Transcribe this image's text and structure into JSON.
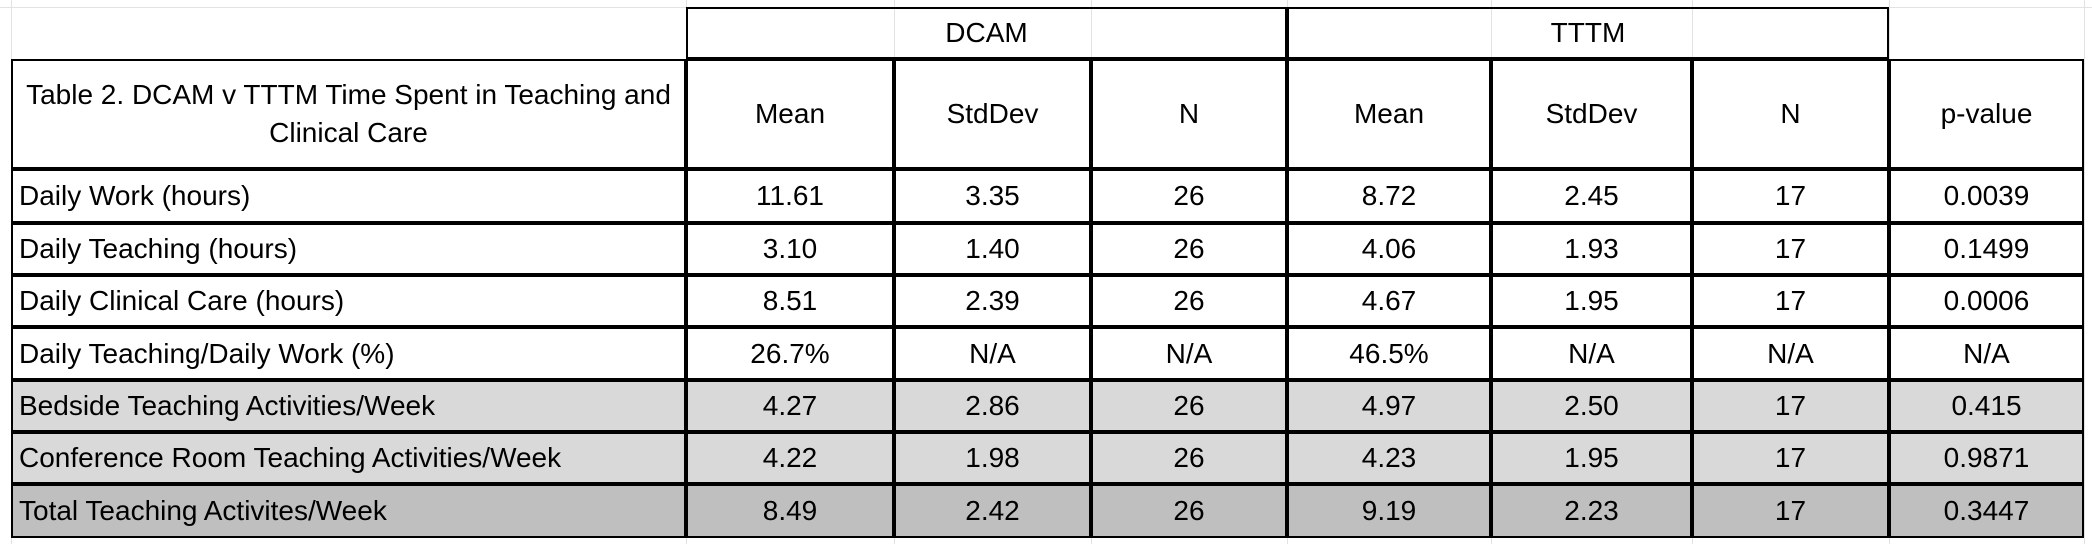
{
  "groups": [
    "DCAM",
    "TTTM"
  ],
  "header": {
    "title": "Table 2. DCAM v TTTM Time Spent in Teaching and Clinical Care",
    "columns": [
      "Mean",
      "StdDev",
      "N",
      "Mean",
      "StdDev",
      "N",
      "p-value"
    ]
  },
  "table": {
    "rows": [
      [
        "Daily Work (hours)",
        "11.61",
        "3.35",
        "26",
        "8.72",
        "2.45",
        "17",
        "0.0039"
      ],
      [
        "Daily Teaching (hours)",
        "3.10",
        "1.40",
        "26",
        "4.06",
        "1.93",
        "17",
        "0.1499"
      ],
      [
        "Daily Clinical Care (hours)",
        "8.51",
        "2.39",
        "26",
        "4.67",
        "1.95",
        "17",
        "0.0006"
      ],
      [
        "Daily Teaching/Daily Work (%)",
        "26.7%",
        "N/A",
        "N/A",
        "46.5%",
        "N/A",
        "N/A",
        "N/A"
      ],
      [
        "Bedside Teaching Activities/Week",
        "4.27",
        "2.86",
        "26",
        "4.97",
        "2.50",
        "17",
        "0.415"
      ],
      [
        "Conference Room Teaching Activities/Week",
        "4.22",
        "1.98",
        "26",
        "4.23",
        "1.95",
        "17",
        "0.9871"
      ],
      [
        "Total Teaching Activites/Week",
        "8.49",
        "2.42",
        "26",
        "9.19",
        "2.23",
        "17",
        "0.3447"
      ]
    ]
  }
}
